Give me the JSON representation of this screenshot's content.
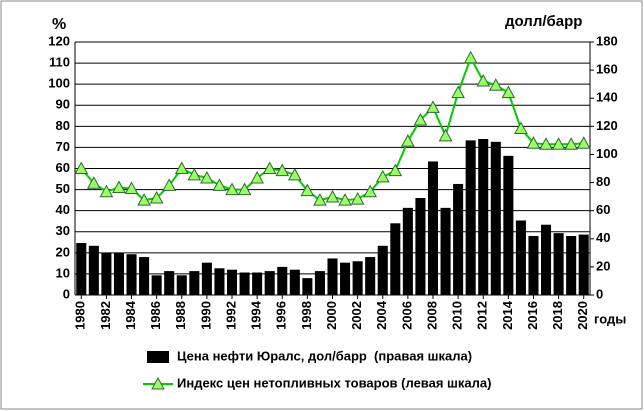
{
  "chart_data": {
    "type": "combo",
    "y_label": "%",
    "y2_label": "долл/барр",
    "x_label": "годы",
    "x": [
      1980,
      1981,
      1982,
      1983,
      1984,
      1985,
      1986,
      1987,
      1988,
      1989,
      1990,
      1991,
      1992,
      1993,
      1994,
      1995,
      1996,
      1997,
      1998,
      1999,
      2000,
      2001,
      2002,
      2003,
      2004,
      2005,
      2006,
      2007,
      2008,
      2009,
      2010,
      2011,
      2012,
      2013,
      2014,
      2015,
      2016,
      2017,
      2018,
      2019,
      2020
    ],
    "xlim": [
      1979.5,
      2020.5
    ],
    "xticks": [
      1980,
      1982,
      1984,
      1986,
      1988,
      1990,
      1992,
      1994,
      1996,
      1998,
      2000,
      2002,
      2004,
      2006,
      2008,
      2010,
      2012,
      2014,
      2016,
      2018,
      2020
    ],
    "ylim": [
      0,
      120
    ],
    "yticks": [
      0,
      10,
      20,
      30,
      40,
      50,
      60,
      70,
      80,
      90,
      100,
      110,
      120
    ],
    "y2lim": [
      0,
      180
    ],
    "y2ticks": [
      0,
      20,
      40,
      60,
      80,
      100,
      120,
      140,
      160,
      180
    ],
    "grid": true,
    "series": [
      {
        "name": "Цена нефти Юралс, дол/барр  (правая шкала)",
        "type": "bar",
        "axis": "y2",
        "color": "#000000",
        "values": [
          37,
          35,
          30,
          30,
          29,
          27,
          14,
          17,
          14,
          17,
          23,
          19,
          18,
          16,
          16,
          17,
          20,
          18,
          12,
          17,
          26,
          23,
          24,
          27,
          35,
          51,
          62,
          69,
          95,
          62,
          79,
          110,
          111,
          109,
          99,
          53,
          42,
          50,
          44,
          42,
          43
        ]
      },
      {
        "name": "Индекс цен нетопливных товаров (левая шкала)",
        "type": "line",
        "axis": "y",
        "color": "#00cc00",
        "marker_color": "#99ff66",
        "values": [
          60,
          53,
          49,
          51,
          50.5,
          45,
          46,
          52,
          60,
          57,
          55.5,
          52,
          50,
          50,
          55.5,
          60,
          59,
          57,
          49.5,
          45,
          46.5,
          45,
          45.5,
          49,
          56,
          59,
          73,
          83,
          89,
          75.5,
          96,
          112.5,
          101.5,
          99.5,
          96,
          79,
          72,
          71.5,
          71.5,
          71.5,
          72
        ]
      }
    ]
  }
}
